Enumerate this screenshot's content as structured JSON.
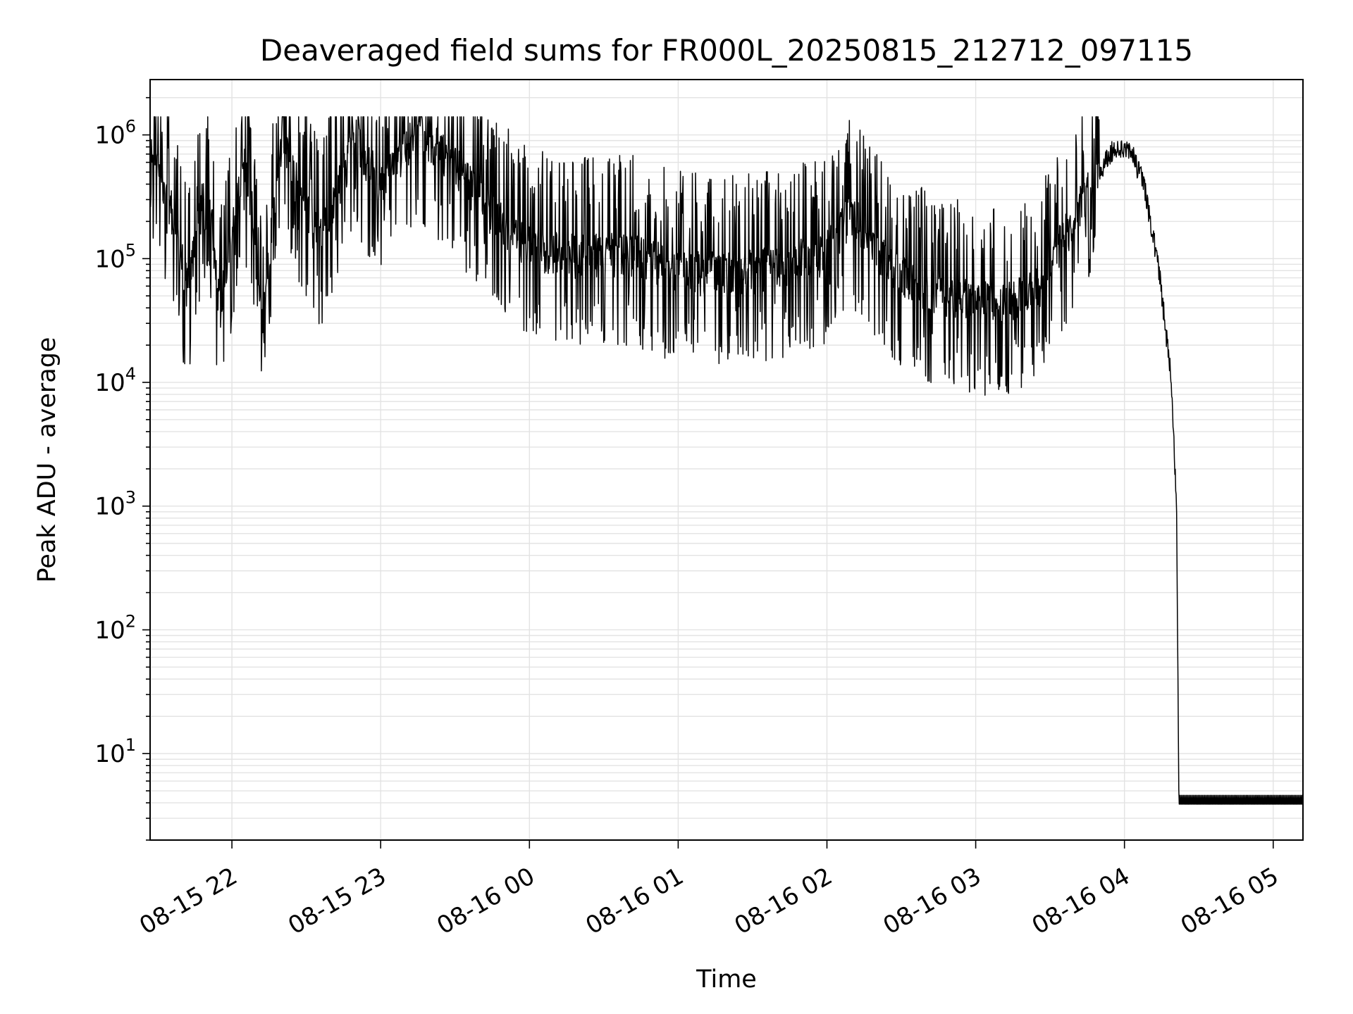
{
  "chart_data": {
    "type": "line",
    "title": "Deaveraged field sums for FR000L_20250815_212712_097115",
    "xlabel": "Time",
    "ylabel": "Peak ADU - average",
    "yscale": "log",
    "grid": true,
    "legend": "none",
    "line_color": "#000000",
    "x_range": [
      "2025-08-15 21:27",
      "2025-08-16 05:12"
    ],
    "y_range": [
      2,
      2800000
    ],
    "x_ticks": [
      {
        "t": "2025-08-15 22:00",
        "label": "08-15 22"
      },
      {
        "t": "2025-08-15 23:00",
        "label": "08-15 23"
      },
      {
        "t": "2025-08-16 00:00",
        "label": "08-16 00"
      },
      {
        "t": "2025-08-16 01:00",
        "label": "08-16 01"
      },
      {
        "t": "2025-08-16 02:00",
        "label": "08-16 02"
      },
      {
        "t": "2025-08-16 03:00",
        "label": "08-16 03"
      },
      {
        "t": "2025-08-16 04:00",
        "label": "08-16 04"
      },
      {
        "t": "2025-08-16 05:00",
        "label": "08-16 05"
      }
    ],
    "y_ticks": [
      {
        "value": 10,
        "base": "10",
        "exp": "1"
      },
      {
        "value": 100,
        "base": "10",
        "exp": "2"
      },
      {
        "value": 1000,
        "base": "10",
        "exp": "3"
      },
      {
        "value": 10000,
        "base": "10",
        "exp": "4"
      },
      {
        "value": 100000,
        "base": "10",
        "exp": "5"
      },
      {
        "value": 1000000,
        "base": "10",
        "exp": "6"
      }
    ],
    "series": [
      {
        "points": [
          [
            "2025-08-15 21:27",
            800000
          ],
          [
            "2025-08-15 21:35",
            300000
          ],
          [
            "2025-08-15 21:42",
            60000
          ],
          [
            "2025-08-15 21:50",
            500000
          ],
          [
            "2025-08-15 21:55",
            40000
          ],
          [
            "2025-08-15 22:05",
            700000
          ],
          [
            "2025-08-15 22:12",
            30000
          ],
          [
            "2025-08-15 22:20",
            900000
          ],
          [
            "2025-08-15 22:35",
            150000
          ],
          [
            "2025-08-15 22:50",
            1000000
          ],
          [
            "2025-08-15 23:00",
            400000
          ],
          [
            "2025-08-15 23:15",
            1200000
          ],
          [
            "2025-08-15 23:30",
            600000
          ],
          [
            "2025-08-15 23:45",
            250000
          ],
          [
            "2025-08-16 00:00",
            130000
          ],
          [
            "2025-08-16 00:20",
            110000
          ],
          [
            "2025-08-16 00:40",
            120000
          ],
          [
            "2025-08-16 01:00",
            85000
          ],
          [
            "2025-08-16 01:20",
            80000
          ],
          [
            "2025-08-16 01:40",
            90000
          ],
          [
            "2025-08-16 02:00",
            120000
          ],
          [
            "2025-08-16 02:10",
            250000
          ],
          [
            "2025-08-16 02:25",
            90000
          ],
          [
            "2025-08-16 02:40",
            60000
          ],
          [
            "2025-08-16 02:55",
            50000
          ],
          [
            "2025-08-16 03:10",
            45000
          ],
          [
            "2025-08-16 03:25",
            60000
          ],
          [
            "2025-08-16 03:35",
            150000
          ],
          [
            "2025-08-16 03:45",
            350000
          ],
          [
            "2025-08-16 03:55",
            750000
          ],
          [
            "2025-08-16 04:02",
            800000
          ],
          [
            "2025-08-16 04:08",
            400000
          ],
          [
            "2025-08-16 04:14",
            80000
          ],
          [
            "2025-08-16 04:19",
            10000
          ],
          [
            "2025-08-16 04:21",
            1000
          ],
          [
            "2025-08-16 04:22",
            4
          ],
          [
            "2025-08-16 05:12",
            4
          ]
        ]
      }
    ]
  }
}
